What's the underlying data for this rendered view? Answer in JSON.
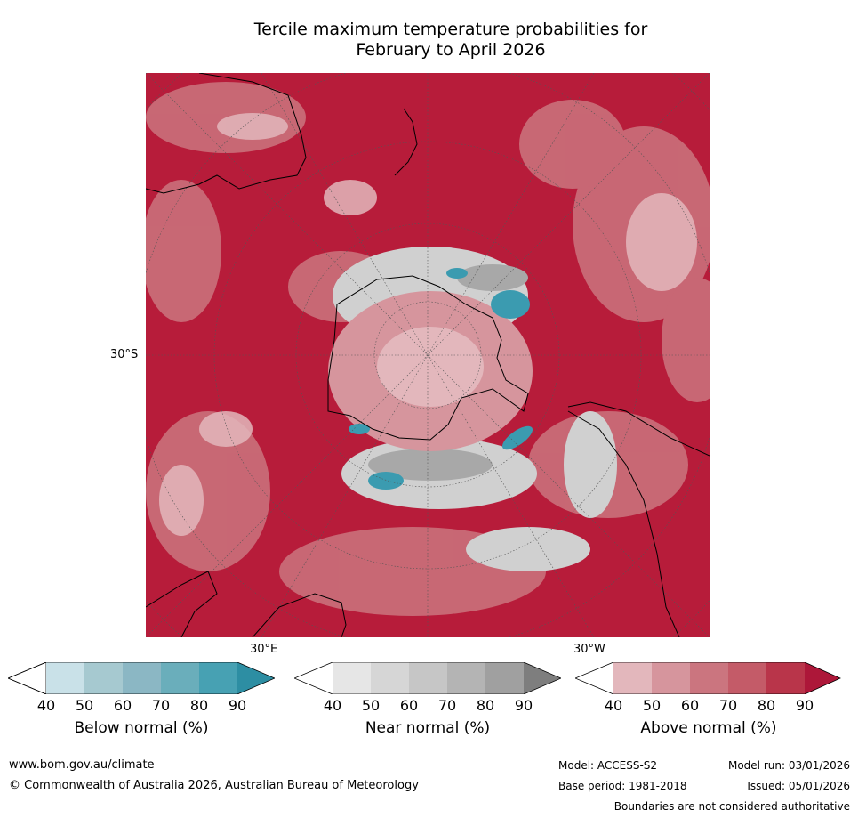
{
  "title": {
    "line1": "Tercile maximum temperature probabilities for",
    "line2": "February to April 2026"
  },
  "map": {
    "lat_label": "30°S",
    "lon_label_e": "30°E",
    "lon_label_w": "30°W",
    "colors": {
      "above_normal_strong": "#b71c3a",
      "near_normal": "#c8c8c8",
      "below_normal": "#3b9bb0",
      "coastline": "#000000"
    }
  },
  "legend": [
    {
      "label": "Below normal (%)",
      "ticks": [
        "40",
        "50",
        "60",
        "70",
        "80",
        "90"
      ],
      "colors": [
        "#ffffff",
        "#c9e1e8",
        "#a6c9d0",
        "#8bb7c4",
        "#6aaebb",
        "#47a1b3",
        "#2d8ea3"
      ]
    },
    {
      "label": "Near normal (%)",
      "ticks": [
        "40",
        "50",
        "60",
        "70",
        "80",
        "90"
      ],
      "colors": [
        "#ffffff",
        "#e6e6e6",
        "#d6d6d6",
        "#c6c6c6",
        "#b4b4b4",
        "#a0a0a0",
        "#7e7e7e"
      ]
    },
    {
      "label": "Above normal (%)",
      "ticks": [
        "40",
        "50",
        "60",
        "70",
        "80",
        "90"
      ],
      "colors": [
        "#ffffff",
        "#e3b7bc",
        "#d6959d",
        "#cb757f",
        "#c45b68",
        "#b9354a",
        "#ad1739"
      ]
    }
  ],
  "footer": {
    "website": "www.bom.gov.au/climate",
    "copyright": "© Commonwealth of Australia 2026, Australian Bureau of Meteorology",
    "model": "Model: ACCESS-S2",
    "model_run": "Model run: 03/01/2026",
    "base_period": "Base period: 1981-2018",
    "issued": "Issued: 05/01/2026",
    "disclaimer": "Boundaries are not considered authoritative"
  }
}
